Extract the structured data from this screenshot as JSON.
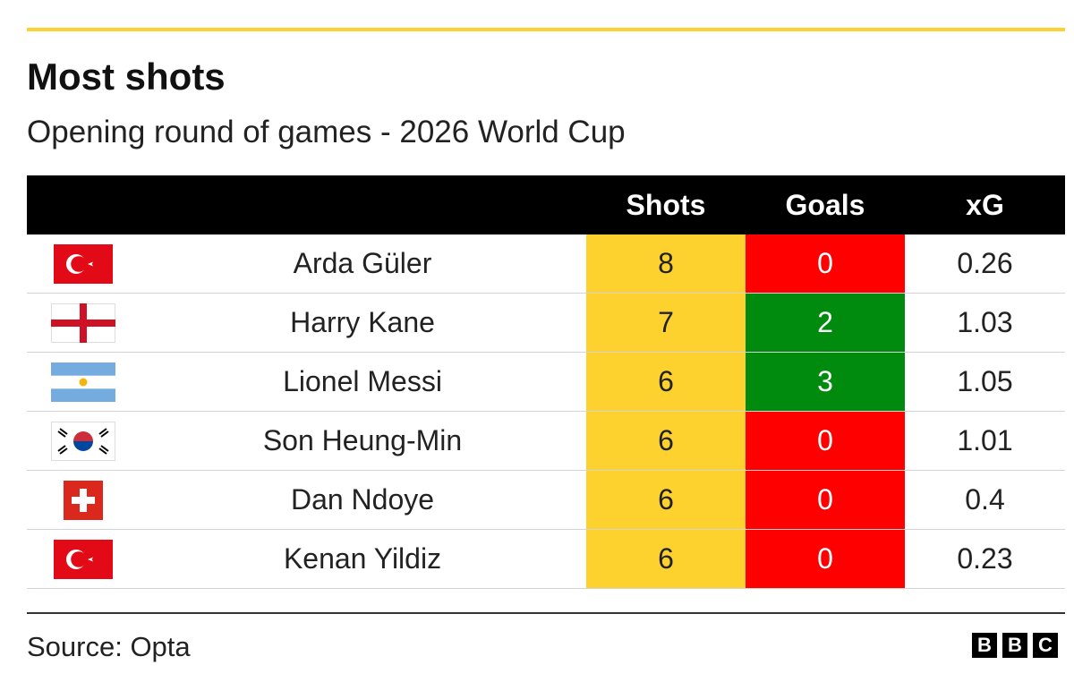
{
  "header": {
    "title": "Most shots",
    "subtitle": "Opening round of games - 2026 World Cup"
  },
  "table": {
    "columns": [
      "Shots",
      "Goals",
      "xG"
    ],
    "shots_color": "#fdd22f",
    "rows": [
      {
        "player": "Arda Güler",
        "shots": "8",
        "goals": "0",
        "xg": "0.26",
        "goals_color": "#ff0000"
      },
      {
        "player": "Harry Kane",
        "shots": "7",
        "goals": "2",
        "xg": "1.03",
        "goals_color": "#008a0e"
      },
      {
        "player": "Lionel Messi",
        "shots": "6",
        "goals": "3",
        "xg": "1.05",
        "goals_color": "#008a0e"
      },
      {
        "player": "Son Heung-Min",
        "shots": "6",
        "goals": "0",
        "xg": "1.01",
        "goals_color": "#ff0000"
      },
      {
        "player": "Dan Ndoye",
        "shots": "6",
        "goals": "0",
        "xg": "0.4",
        "goals_color": "#ff0000"
      },
      {
        "player": "Kenan Yildiz",
        "shots": "6",
        "goals": "0",
        "xg": "0.23",
        "goals_color": "#ff0000"
      }
    ]
  },
  "footer": {
    "source": "Source: Opta",
    "logo": [
      "B",
      "B",
      "C"
    ]
  }
}
